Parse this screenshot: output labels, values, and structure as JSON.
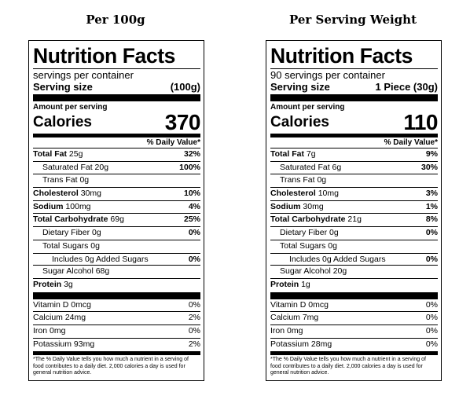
{
  "headings": {
    "left": "Per 100g",
    "right": "Per Serving Weight"
  },
  "panels": [
    {
      "title": "Nutrition Facts",
      "servings": "servings per container",
      "serving_size_label": "Serving size",
      "serving_size_value": "(100g)",
      "amount_label": "Amount per serving",
      "calories_label": "Calories",
      "calories_value": "370",
      "dv_header": "% Daily Value*",
      "nutrients": [
        {
          "bold": "Total Fat",
          "amt": "25g",
          "pct": "32%"
        },
        {
          "bold": "",
          "amt": "Saturated Fat 20g",
          "pct": "100%"
        },
        {
          "bold": "",
          "amt": "Trans Fat 0g",
          "pct": ""
        },
        {
          "bold": "Cholesterol",
          "amt": "30mg",
          "pct": "10%"
        },
        {
          "bold": "Sodium",
          "amt": "100mg",
          "pct": "4%"
        },
        {
          "bold": "Total Carbohydrate",
          "amt": "69g",
          "pct": "25%"
        },
        {
          "bold": "",
          "amt": "Dietary Fiber 0g",
          "pct": "0%"
        },
        {
          "bold": "",
          "amt": "Total Sugars 0g",
          "pct": ""
        },
        {
          "bold": "",
          "amt": "Includes 0g Added Sugars",
          "pct": "0%"
        },
        {
          "bold": "",
          "amt": "Sugar Alcohol 68g",
          "pct": ""
        },
        {
          "bold": "Protein",
          "amt": "3g",
          "pct": ""
        }
      ],
      "vitamins": [
        {
          "label": "Vitamin D 0mcg",
          "pct": "0%"
        },
        {
          "label": "Calcium 24mg",
          "pct": "2%"
        },
        {
          "label": "Iron 0mg",
          "pct": "0%"
        },
        {
          "label": "Potassium 93mg",
          "pct": "2%"
        }
      ],
      "footnote": "*The % Daily Value tells you how much a nutrient in a serving of food contributes to a daily diet. 2,000 calories a day is used for general nutrition advice."
    },
    {
      "title": "Nutrition Facts",
      "servings": "90 servings per container",
      "serving_size_label": "Serving size",
      "serving_size_value": "1 Piece (30g)",
      "amount_label": "Amount per serving",
      "calories_label": "Calories",
      "calories_value": "110",
      "dv_header": "% Daily Value*",
      "nutrients": [
        {
          "bold": "Total Fat",
          "amt": "7g",
          "pct": "9%"
        },
        {
          "bold": "",
          "amt": "Saturated Fat 6g",
          "pct": "30%"
        },
        {
          "bold": "",
          "amt": "Trans Fat 0g",
          "pct": ""
        },
        {
          "bold": "Cholesterol",
          "amt": "10mg",
          "pct": "3%"
        },
        {
          "bold": "Sodium",
          "amt": "30mg",
          "pct": "1%"
        },
        {
          "bold": "Total Carbohydrate",
          "amt": "21g",
          "pct": "8%"
        },
        {
          "bold": "",
          "amt": "Dietary Fiber 0g",
          "pct": "0%"
        },
        {
          "bold": "",
          "amt": "Total Sugars 0g",
          "pct": ""
        },
        {
          "bold": "",
          "amt": "Includes 0g Added Sugars",
          "pct": "0%"
        },
        {
          "bold": "",
          "amt": "Sugar Alcohol 20g",
          "pct": ""
        },
        {
          "bold": "Protein",
          "amt": "1g",
          "pct": ""
        }
      ],
      "vitamins": [
        {
          "label": "Vitamin D 0mcg",
          "pct": "0%"
        },
        {
          "label": "Calcium 7mg",
          "pct": "0%"
        },
        {
          "label": "Iron 0mg",
          "pct": "0%"
        },
        {
          "label": "Potassium 28mg",
          "pct": "0%"
        }
      ],
      "footnote": "*The % Daily Value tells you how much a nutrient in a serving of food contributes to a daily diet. 2,000 calories a day is used for general nutrition advice."
    }
  ]
}
